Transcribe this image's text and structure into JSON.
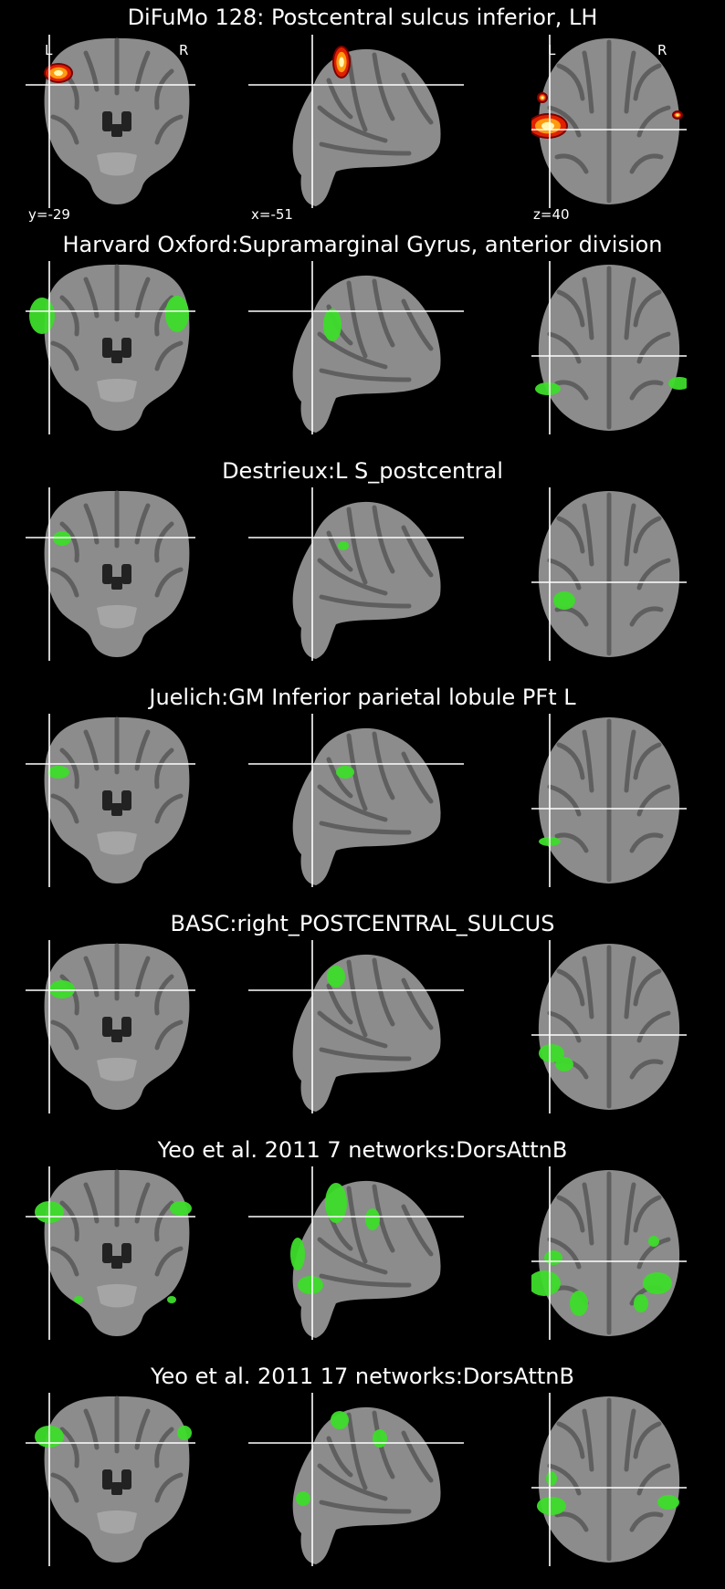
{
  "first_panel": {
    "title": "DiFuMo 128: Postcentral sulcus inferior, LH",
    "orientation": {
      "left": "L",
      "right": "R"
    },
    "coords": {
      "coronal": "y=-29",
      "sagittal": "x=-51",
      "axial": "z=40"
    },
    "colormap": "cold_hot"
  },
  "atlas_rows": [
    {
      "title": "Harvard Oxford:Supramarginal Gyrus, anterior division"
    },
    {
      "title": "Destrieux:L S_postcentral"
    },
    {
      "title": "Juelich:GM Inferior parietal lobule PFt L"
    },
    {
      "title": "BASC:right_POSTCENTRAL_SULCUS"
    },
    {
      "title": "Yeo et al. 2011 7 networks:DorsAttnB"
    },
    {
      "title": "Yeo et al. 2011 17 networks:DorsAttnB"
    }
  ],
  "colors": {
    "background": "#000000",
    "brain": "#8c8c8c",
    "overlay_atlas": "#3ddc2a",
    "overlay_hot": "#ff9a10",
    "crosshair": "#ffffff"
  }
}
